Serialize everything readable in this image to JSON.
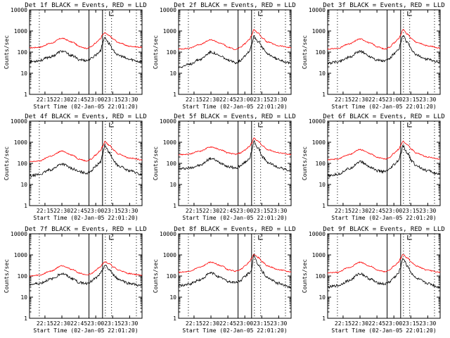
{
  "chart_data": {
    "type": "line",
    "x_ticks": [
      "22:15",
      "22:30",
      "22:45",
      "23:00",
      "23:15",
      "23:30"
    ],
    "y_ticks": [
      "1",
      "10",
      "100",
      "1000",
      "10000"
    ],
    "y_scale": "log",
    "ylim": [
      1,
      10000
    ],
    "xlim": [
      "22:01:20",
      "23:41"
    ],
    "ylabel": "Counts/sec",
    "xlabel": "Start Time (02-Jan-05 22:01:20)",
    "series_colors": {
      "events": "#000000",
      "lld": "#ff0000"
    },
    "vertical_solid_lines": [
      "22:54",
      "23:06"
    ],
    "vertical_dotted_lines": [
      "22:10",
      "23:08:30",
      "23:14",
      "23:36"
    ],
    "panels": [
      {
        "title": "Det 1f  BLACK = Events, RED = LLD",
        "x": [
          "22:02",
          "22:10",
          "22:20",
          "22:30",
          "22:40",
          "22:45",
          "22:52",
          "22:56",
          "23:00",
          "23:04",
          "23:06",
          "23:08",
          "23:12",
          "23:16",
          "23:20",
          "23:30",
          "23:40"
        ],
        "events": [
          35,
          40,
          60,
          110,
          65,
          45,
          40,
          50,
          75,
          110,
          250,
          500,
          250,
          110,
          70,
          45,
          35
        ],
        "lld": [
          160,
          170,
          260,
          450,
          290,
          190,
          150,
          180,
          280,
          420,
          650,
          800,
          600,
          400,
          280,
          190,
          170
        ]
      },
      {
        "title": "Det 2f  BLACK = Events, RED = LLD",
        "x": [
          "22:02",
          "22:10",
          "22:20",
          "22:30",
          "22:40",
          "22:45",
          "22:52",
          "22:56",
          "23:00",
          "23:04",
          "23:06",
          "23:08",
          "23:12",
          "23:16",
          "23:20",
          "23:30",
          "23:40"
        ],
        "events": [
          20,
          25,
          45,
          100,
          60,
          40,
          32,
          40,
          70,
          110,
          230,
          550,
          320,
          150,
          80,
          45,
          30
        ],
        "lld": [
          140,
          150,
          230,
          380,
          250,
          170,
          135,
          165,
          250,
          400,
          620,
          1150,
          780,
          450,
          300,
          200,
          165
        ]
      },
      {
        "title": "Det 3f  BLACK = Events, RED = LLD",
        "x": [
          "22:02",
          "22:10",
          "22:20",
          "22:30",
          "22:40",
          "22:45",
          "22:52",
          "22:56",
          "23:00",
          "23:04",
          "23:06",
          "23:08",
          "23:12",
          "23:16",
          "23:20",
          "23:30",
          "23:40"
        ],
        "events": [
          30,
          35,
          55,
          110,
          60,
          42,
          38,
          48,
          80,
          120,
          260,
          600,
          280,
          120,
          70,
          45,
          35
        ],
        "lld": [
          140,
          150,
          240,
          420,
          260,
          180,
          140,
          170,
          270,
          420,
          650,
          1150,
          700,
          420,
          290,
          200,
          160
        ]
      },
      {
        "title": "Det 4f  BLACK = Events, RED = LLD",
        "x": [
          "22:02",
          "22:10",
          "22:20",
          "22:30",
          "22:40",
          "22:45",
          "22:52",
          "22:56",
          "23:00",
          "23:04",
          "23:06",
          "23:08",
          "23:12",
          "23:16",
          "23:20",
          "23:30",
          "23:40"
        ],
        "events": [
          25,
          30,
          50,
          95,
          55,
          40,
          35,
          45,
          75,
          110,
          250,
          700,
          320,
          130,
          75,
          45,
          30
        ],
        "lld": [
          120,
          130,
          220,
          380,
          240,
          160,
          130,
          160,
          250,
          400,
          620,
          1050,
          720,
          420,
          280,
          180,
          150
        ]
      },
      {
        "title": "Det 5f  BLACK = Events, RED = LLD",
        "x": [
          "22:02",
          "22:10",
          "22:20",
          "22:30",
          "22:40",
          "22:45",
          "22:52",
          "22:56",
          "23:00",
          "23:04",
          "23:06",
          "23:08",
          "23:12",
          "23:16",
          "23:20",
          "23:30",
          "23:40"
        ],
        "events": [
          55,
          60,
          80,
          170,
          100,
          70,
          60,
          75,
          110,
          170,
          330,
          1100,
          500,
          200,
          110,
          65,
          45
        ],
        "lld": [
          260,
          270,
          380,
          600,
          420,
          310,
          270,
          310,
          430,
          620,
          900,
          1550,
          1100,
          650,
          450,
          320,
          260
        ]
      },
      {
        "title": "Det 6f  BLACK = Events, RED = LLD",
        "x": [
          "22:02",
          "22:10",
          "22:20",
          "22:30",
          "22:40",
          "22:45",
          "22:52",
          "22:56",
          "23:00",
          "23:04",
          "23:06",
          "23:08",
          "23:12",
          "23:16",
          "23:20",
          "23:30",
          "23:40"
        ],
        "events": [
          25,
          30,
          55,
          120,
          65,
          45,
          40,
          50,
          85,
          130,
          270,
          650,
          300,
          130,
          75,
          45,
          30
        ],
        "lld": [
          150,
          160,
          260,
          450,
          280,
          190,
          160,
          190,
          300,
          450,
          700,
          1100,
          750,
          450,
          300,
          200,
          160
        ]
      },
      {
        "title": "Det 7f  BLACK = Events, RED = LLD",
        "x": [
          "22:02",
          "22:10",
          "22:20",
          "22:30",
          "22:40",
          "22:45",
          "22:52",
          "22:56",
          "23:00",
          "23:04",
          "23:06",
          "23:08",
          "23:12",
          "23:16",
          "23:20",
          "23:30",
          "23:40"
        ],
        "events": [
          40,
          45,
          70,
          130,
          75,
          50,
          45,
          55,
          80,
          120,
          200,
          320,
          200,
          110,
          70,
          45,
          35
        ],
        "lld": [
          100,
          110,
          170,
          310,
          200,
          140,
          110,
          130,
          190,
          280,
          380,
          480,
          380,
          260,
          190,
          130,
          110
        ]
      },
      {
        "title": "Det 8f  BLACK = Events, RED = LLD",
        "x": [
          "22:02",
          "22:10",
          "22:20",
          "22:30",
          "22:40",
          "22:45",
          "22:52",
          "22:56",
          "23:00",
          "23:04",
          "23:06",
          "23:08",
          "23:12",
          "23:16",
          "23:20",
          "23:30",
          "23:40"
        ],
        "events": [
          35,
          40,
          65,
          140,
          80,
          55,
          50,
          60,
          95,
          140,
          200,
          900,
          350,
          150,
          80,
          45,
          30
        ],
        "lld": [
          150,
          160,
          260,
          450,
          300,
          200,
          170,
          200,
          300,
          450,
          700,
          1050,
          750,
          450,
          300,
          200,
          160
        ]
      },
      {
        "title": "Det 9f  BLACK = Events, RED = LLD",
        "x": [
          "22:02",
          "22:10",
          "22:20",
          "22:30",
          "22:40",
          "22:45",
          "22:52",
          "22:56",
          "23:00",
          "23:04",
          "23:06",
          "23:08",
          "23:12",
          "23:16",
          "23:20",
          "23:30",
          "23:40"
        ],
        "events": [
          30,
          35,
          60,
          130,
          70,
          48,
          42,
          52,
          85,
          130,
          260,
          700,
          300,
          130,
          75,
          45,
          30
        ],
        "lld": [
          140,
          150,
          250,
          450,
          280,
          190,
          160,
          190,
          290,
          440,
          680,
          1050,
          720,
          430,
          290,
          190,
          150
        ]
      }
    ]
  }
}
